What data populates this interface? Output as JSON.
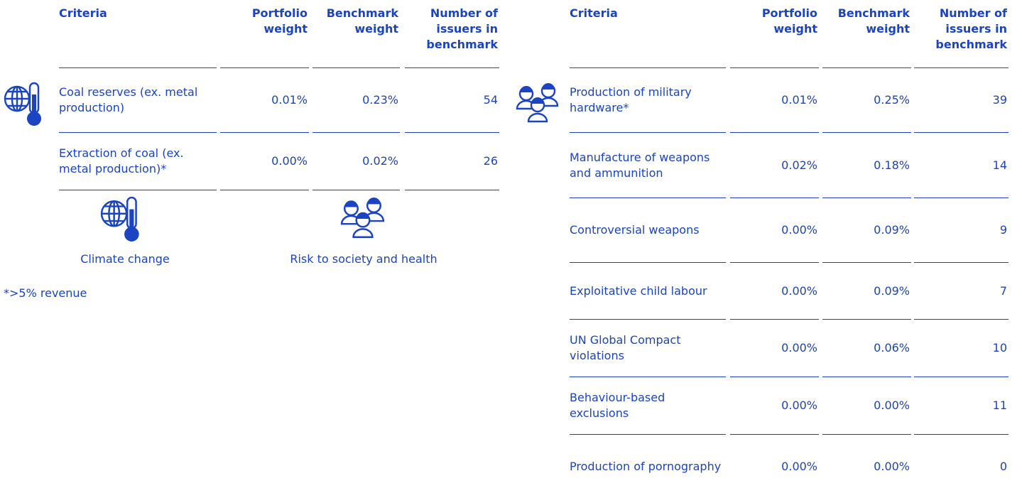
{
  "left_table": {
    "headers": [
      "Criteria",
      "Portfolio weight",
      "Benchmark weight",
      "Number of issuers in benchmark"
    ],
    "rows": [
      [
        "Coal reserves (ex. metal production)",
        "0.01%",
        "0.23%",
        "54"
      ],
      [
        "Extraction of coal (ex. metal production)*",
        "0.00%",
        "0.02%",
        "26"
      ]
    ]
  },
  "right_table": {
    "headers": [
      "Criteria",
      "Portfolio weight",
      "Benchmark weight",
      "Number of issuers in benchmark"
    ],
    "rows": [
      [
        "Production of military hardware*",
        "0.01%",
        "0.25%",
        "39"
      ],
      [
        "Manufacture of weapons and ammunition",
        "0.02%",
        "0.18%",
        "14"
      ],
      [
        "Controversial weapons",
        "0.00%",
        "0.09%",
        "9"
      ],
      [
        "Exploitative child labour",
        "0.00%",
        "0.09%",
        "7"
      ],
      [
        "UN Global Compact violations",
        "0.00%",
        "0.06%",
        "10"
      ],
      [
        "Behaviour-based exclusions",
        "0.00%",
        "0.00%",
        "11"
      ],
      [
        "Production of pornography",
        "0.00%",
        "0.00%",
        "0"
      ]
    ]
  },
  "legend": [
    {
      "label": "Climate change"
    },
    {
      "label": "Risk to society and health"
    }
  ],
  "footnote": "*>5% revenue"
}
